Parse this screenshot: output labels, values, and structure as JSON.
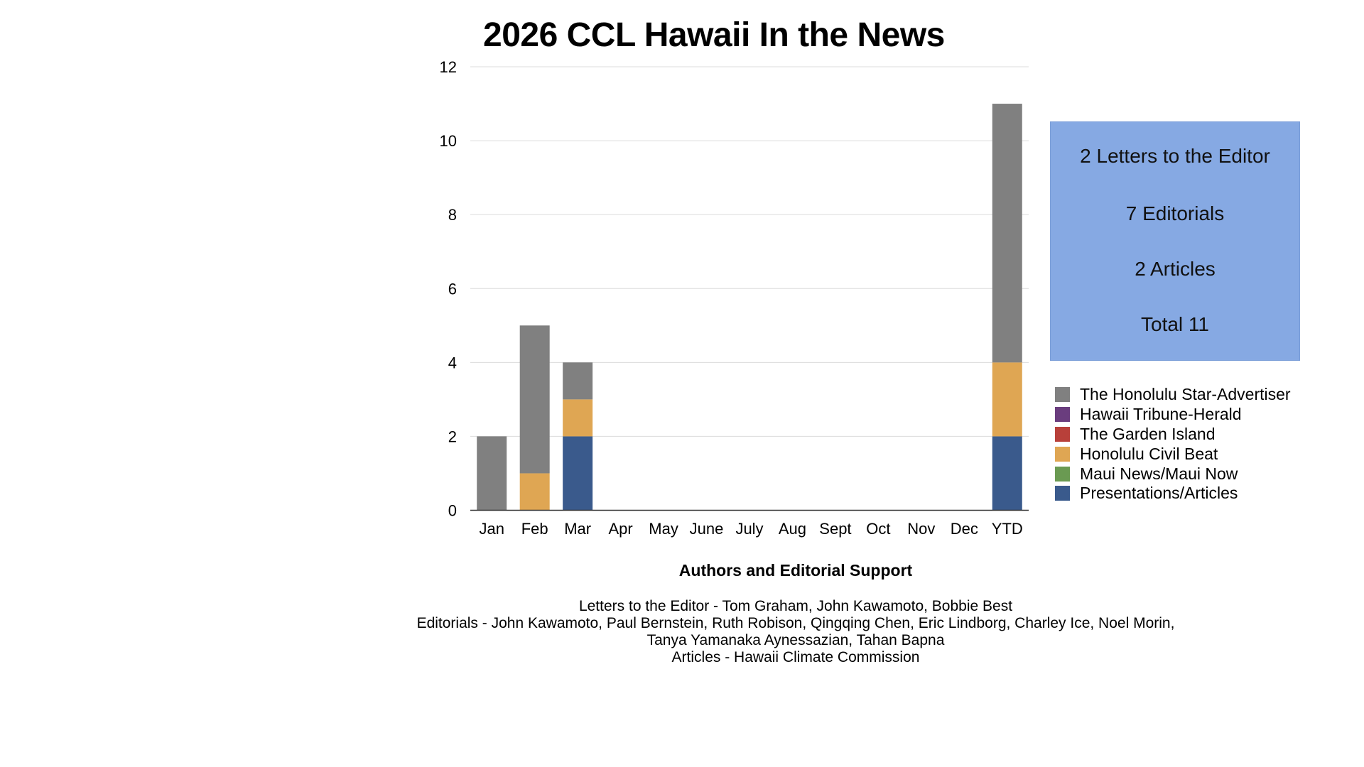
{
  "chart_data": {
    "type": "bar",
    "stacked": true,
    "title": "2026 CCL Hawaii In the News",
    "categories": [
      "Jan",
      "Feb",
      "Mar",
      "Apr",
      "May",
      "June",
      "July",
      "Aug",
      "Sept",
      "Oct",
      "Nov",
      "Dec",
      "YTD"
    ],
    "ylim": [
      0,
      12
    ],
    "yticks": [
      0,
      2,
      4,
      6,
      8,
      10,
      12
    ],
    "grid": true,
    "legend_position": "right",
    "series": [
      {
        "name": "Presentations/Articles",
        "color": "#3a5a8c",
        "values": [
          0,
          0,
          2,
          0,
          0,
          0,
          0,
          0,
          0,
          0,
          0,
          0,
          2
        ]
      },
      {
        "name": "Maui News/Maui Now",
        "color": "#6a9a52",
        "values": [
          0,
          0,
          0,
          0,
          0,
          0,
          0,
          0,
          0,
          0,
          0,
          0,
          0
        ]
      },
      {
        "name": "Honolulu Civil Beat",
        "color": "#dfa653",
        "values": [
          0,
          1,
          1,
          0,
          0,
          0,
          0,
          0,
          0,
          0,
          0,
          0,
          2
        ]
      },
      {
        "name": "The Garden Island",
        "color": "#b8403a",
        "values": [
          0,
          0,
          0,
          0,
          0,
          0,
          0,
          0,
          0,
          0,
          0,
          0,
          0
        ]
      },
      {
        "name": "Hawaii Tribune-Herald",
        "color": "#6a3d7e",
        "values": [
          0,
          0,
          0,
          0,
          0,
          0,
          0,
          0,
          0,
          0,
          0,
          0,
          0
        ]
      },
      {
        "name": "The Honolulu Star-Advertiser",
        "color": "#808080",
        "values": [
          2,
          4,
          1,
          0,
          0,
          0,
          0,
          0,
          0,
          0,
          0,
          0,
          7
        ]
      }
    ],
    "legend_order": [
      "The Honolulu Star-Advertiser",
      "Hawaii Tribune-Herald",
      "The Garden Island",
      "Honolulu Civil Beat",
      "Maui News/Maui Now",
      "Presentations/Articles"
    ]
  },
  "summary": {
    "letters": "2 Letters to the Editor",
    "editorials": "7 Editorials",
    "articles": "2 Articles",
    "total": "Total 11"
  },
  "authors": {
    "heading": "Authors and Editorial Support",
    "lines": [
      "Letters to the Editor - Tom Graham, John Kawamoto, Bobbie Best",
      "Editorials -  John Kawamoto, Paul Bernstein, Ruth Robison, Qingqing Chen, Eric Lindborg, Charley Ice, Noel Morin,",
      "Tanya Yamanaka Aynessazian, Tahan Bapna",
      "Articles - Hawaii Climate Commission"
    ]
  }
}
